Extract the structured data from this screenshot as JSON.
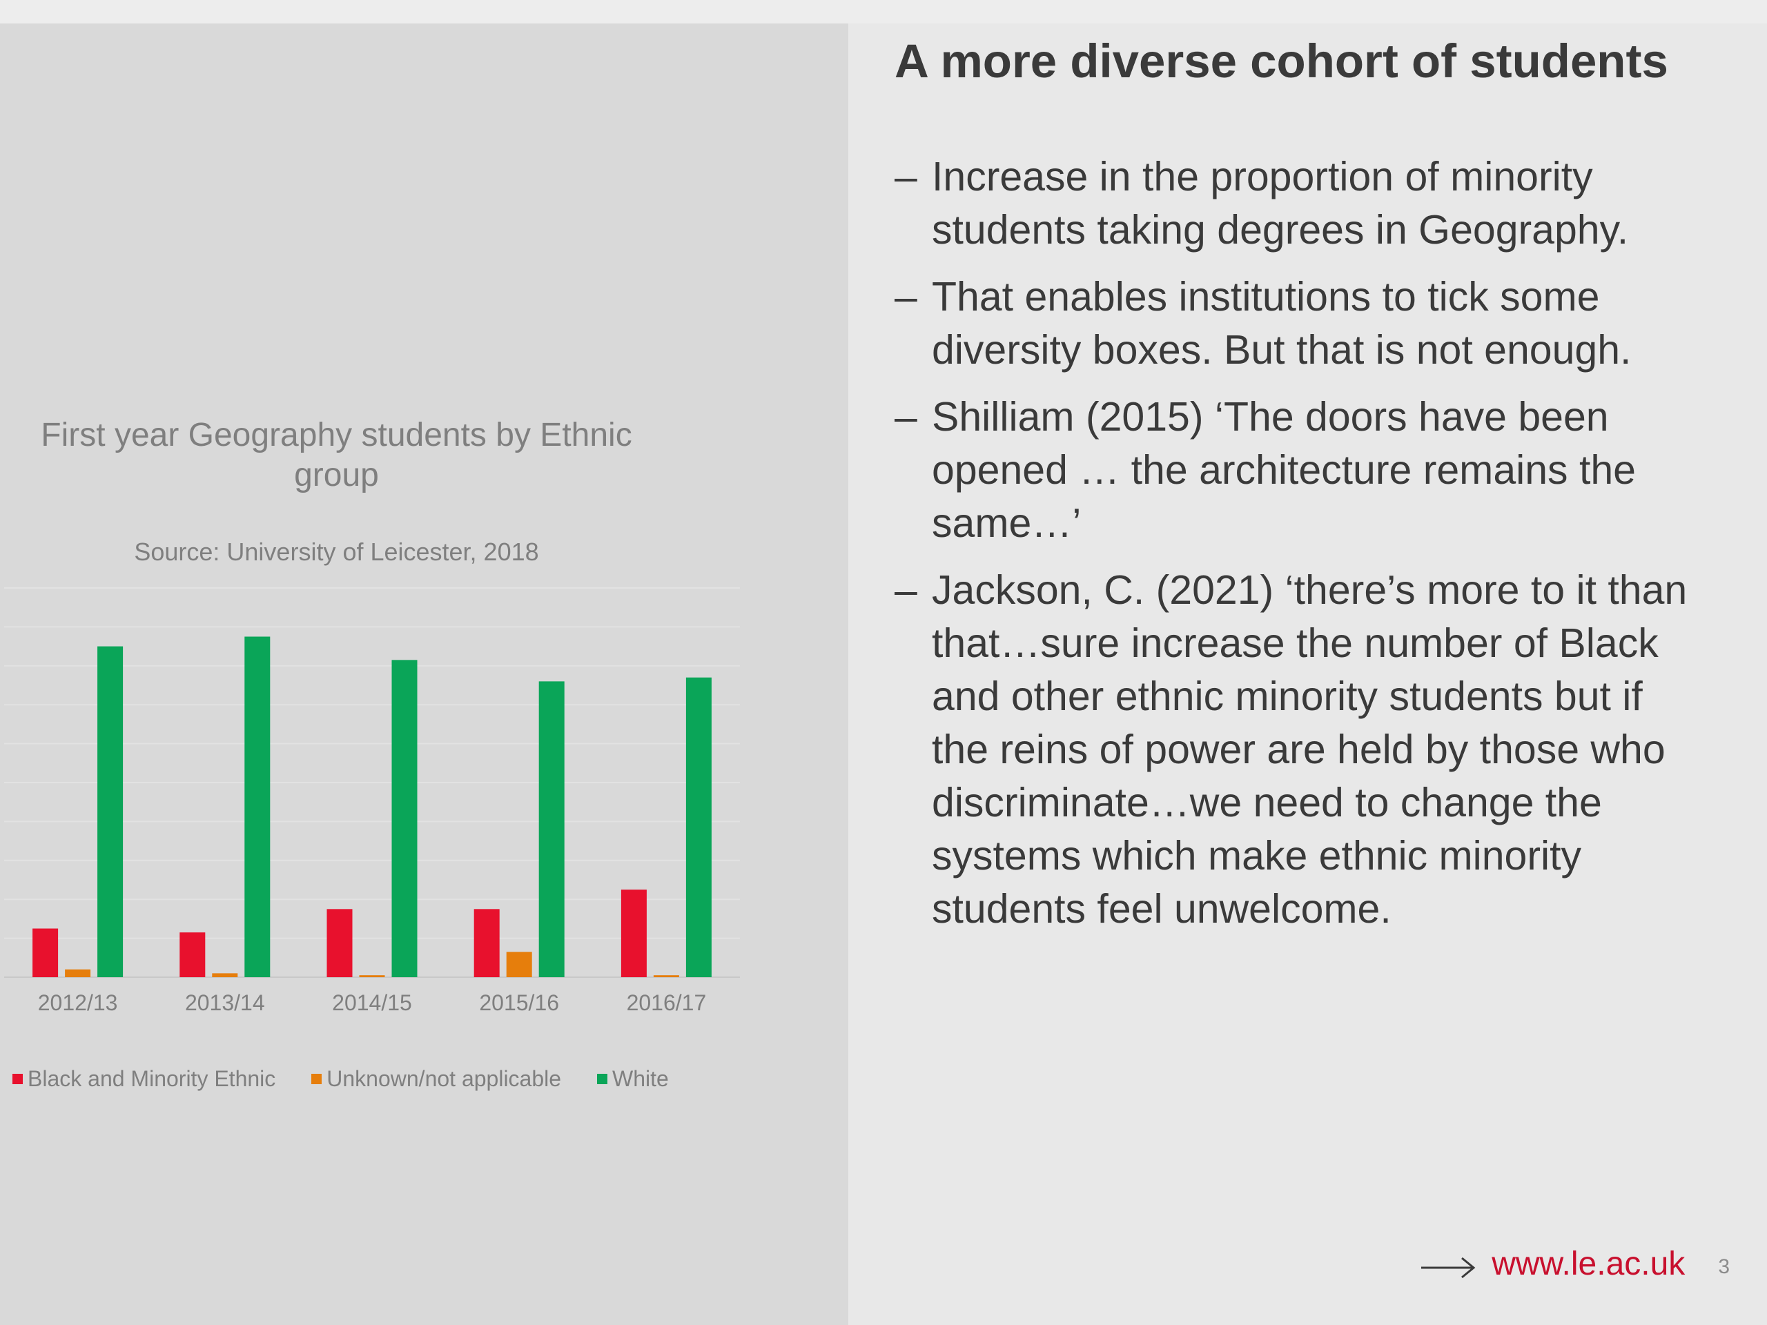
{
  "slide": {
    "title": "A more diverse cohort of students",
    "bullets": [
      "Increase in the proportion of minority students taking degrees in Geography.",
      "That enables institutions to tick some diversity boxes. But that is not enough.",
      "Shilliam (2015) ‘The doors have been opened … the architecture remains the same…’",
      "Jackson, C. (2021) ‘there’s more to it than that…sure increase the number of Black and other ethnic minority students but if the reins of power are held by those who discriminate…we need to change the systems which make ethnic minority students feel unwelcome."
    ],
    "bullet_marker": "–",
    "footer_url": "www.le.ac.uk",
    "page_number": "3",
    "arrow_icon": "right-arrow-icon",
    "colors": {
      "background": "#e8e8e8",
      "chart_panel": "#d9d9d9",
      "brand_red": "#c8102e",
      "text": "#3a3a3a"
    }
  },
  "chart_data": {
    "type": "bar",
    "title": "First year Geography students by Ethnic group",
    "subtitle": "Source: University of Leicester, 2018",
    "categories": [
      "2012/13",
      "2013/14",
      "2014/15",
      "2015/16",
      "2016/17"
    ],
    "series": [
      {
        "name": "Black and Minority Ethnic",
        "color": "#e8112d",
        "values": [
          25,
          23,
          35,
          35,
          45
        ]
      },
      {
        "name": "Unknown/not applicable",
        "color": "#e67e0c",
        "values": [
          4,
          2,
          1,
          13,
          1
        ]
      },
      {
        "name": "White",
        "color": "#0aa558",
        "values": [
          170,
          175,
          163,
          152,
          154
        ]
      }
    ],
    "ylim": [
      0,
      200
    ],
    "grid": true,
    "legend": "bottom"
  }
}
